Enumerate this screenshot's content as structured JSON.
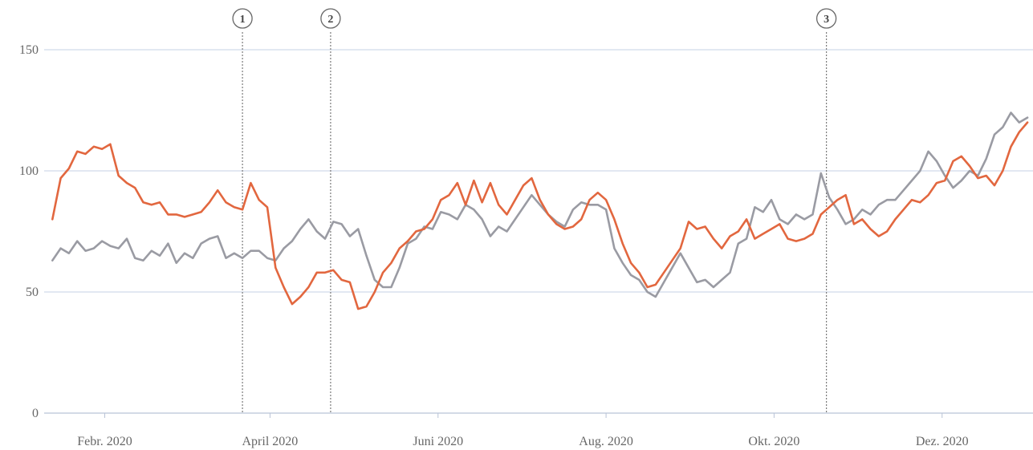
{
  "chart_data": {
    "type": "line",
    "title": "",
    "xlabel": "",
    "ylabel": "",
    "ylim": [
      0,
      150
    ],
    "y_ticks": [
      "0",
      "50",
      "100",
      "150"
    ],
    "x_ticks": [
      "Febr. 2020",
      "April 2020",
      "Juni 2020",
      "Aug. 2020",
      "Okt. 2020",
      "Dez. 2020"
    ],
    "grid": "horizontal",
    "markers": [
      {
        "label": "1",
        "x": "2020-03-22"
      },
      {
        "label": "2",
        "x": "2020-04-23"
      },
      {
        "label": "3",
        "x": "2020-10-20"
      }
    ],
    "series": [
      {
        "color": "#e2673f",
        "points": [
          [
            "2020-01-13",
            80
          ],
          [
            "2020-01-16",
            97
          ],
          [
            "2020-01-19",
            101
          ],
          [
            "2020-01-22",
            108
          ],
          [
            "2020-01-25",
            107
          ],
          [
            "2020-01-28",
            110
          ],
          [
            "2020-01-31",
            109
          ],
          [
            "2020-02-03",
            111
          ],
          [
            "2020-02-06",
            98
          ],
          [
            "2020-02-09",
            95
          ],
          [
            "2020-02-12",
            93
          ],
          [
            "2020-02-15",
            87
          ],
          [
            "2020-02-18",
            86
          ],
          [
            "2020-02-21",
            87
          ],
          [
            "2020-02-24",
            82
          ],
          [
            "2020-02-27",
            82
          ],
          [
            "2020-03-01",
            81
          ],
          [
            "2020-03-04",
            82
          ],
          [
            "2020-03-07",
            83
          ],
          [
            "2020-03-10",
            87
          ],
          [
            "2020-03-13",
            92
          ],
          [
            "2020-03-16",
            87
          ],
          [
            "2020-03-19",
            85
          ],
          [
            "2020-03-22",
            84
          ],
          [
            "2020-03-25",
            95
          ],
          [
            "2020-03-28",
            88
          ],
          [
            "2020-03-31",
            85
          ],
          [
            "2020-04-03",
            60
          ],
          [
            "2020-04-06",
            52
          ],
          [
            "2020-04-09",
            45
          ],
          [
            "2020-04-12",
            48
          ],
          [
            "2020-04-15",
            52
          ],
          [
            "2020-04-18",
            58
          ],
          [
            "2020-04-21",
            58
          ],
          [
            "2020-04-24",
            59
          ],
          [
            "2020-04-27",
            55
          ],
          [
            "2020-04-30",
            54
          ],
          [
            "2020-05-03",
            43
          ],
          [
            "2020-05-06",
            44
          ],
          [
            "2020-05-09",
            50
          ],
          [
            "2020-05-12",
            58
          ],
          [
            "2020-05-15",
            62
          ],
          [
            "2020-05-18",
            68
          ],
          [
            "2020-05-21",
            71
          ],
          [
            "2020-05-24",
            75
          ],
          [
            "2020-05-27",
            76
          ],
          [
            "2020-05-30",
            80
          ],
          [
            "2020-06-02",
            88
          ],
          [
            "2020-06-05",
            90
          ],
          [
            "2020-06-08",
            95
          ],
          [
            "2020-06-11",
            86
          ],
          [
            "2020-06-14",
            96
          ],
          [
            "2020-06-17",
            87
          ],
          [
            "2020-06-20",
            95
          ],
          [
            "2020-06-23",
            86
          ],
          [
            "2020-06-26",
            82
          ],
          [
            "2020-06-29",
            88
          ],
          [
            "2020-07-02",
            94
          ],
          [
            "2020-07-05",
            97
          ],
          [
            "2020-07-08",
            88
          ],
          [
            "2020-07-11",
            82
          ],
          [
            "2020-07-14",
            78
          ],
          [
            "2020-07-17",
            76
          ],
          [
            "2020-07-20",
            77
          ],
          [
            "2020-07-23",
            80
          ],
          [
            "2020-07-26",
            88
          ],
          [
            "2020-07-29",
            91
          ],
          [
            "2020-08-01",
            88
          ],
          [
            "2020-08-04",
            80
          ],
          [
            "2020-08-07",
            70
          ],
          [
            "2020-08-10",
            62
          ],
          [
            "2020-08-13",
            58
          ],
          [
            "2020-08-16",
            52
          ],
          [
            "2020-08-19",
            53
          ],
          [
            "2020-08-22",
            58
          ],
          [
            "2020-08-25",
            63
          ],
          [
            "2020-08-28",
            68
          ],
          [
            "2020-08-31",
            79
          ],
          [
            "2020-09-03",
            76
          ],
          [
            "2020-09-06",
            77
          ],
          [
            "2020-09-09",
            72
          ],
          [
            "2020-09-12",
            68
          ],
          [
            "2020-09-15",
            73
          ],
          [
            "2020-09-18",
            75
          ],
          [
            "2020-09-21",
            80
          ],
          [
            "2020-09-24",
            72
          ],
          [
            "2020-09-27",
            74
          ],
          [
            "2020-09-30",
            76
          ],
          [
            "2020-10-03",
            78
          ],
          [
            "2020-10-06",
            72
          ],
          [
            "2020-10-09",
            71
          ],
          [
            "2020-10-12",
            72
          ],
          [
            "2020-10-15",
            74
          ],
          [
            "2020-10-18",
            82
          ],
          [
            "2020-10-21",
            85
          ],
          [
            "2020-10-24",
            88
          ],
          [
            "2020-10-27",
            90
          ],
          [
            "2020-10-30",
            78
          ],
          [
            "2020-11-02",
            80
          ],
          [
            "2020-11-05",
            76
          ],
          [
            "2020-11-08",
            73
          ],
          [
            "2020-11-11",
            75
          ],
          [
            "2020-11-14",
            80
          ],
          [
            "2020-11-17",
            84
          ],
          [
            "2020-11-20",
            88
          ],
          [
            "2020-11-23",
            87
          ],
          [
            "2020-11-26",
            90
          ],
          [
            "2020-11-29",
            95
          ],
          [
            "2020-12-02",
            96
          ],
          [
            "2020-12-05",
            104
          ],
          [
            "2020-12-08",
            106
          ],
          [
            "2020-12-11",
            102
          ],
          [
            "2020-12-14",
            97
          ],
          [
            "2020-12-17",
            98
          ],
          [
            "2020-12-20",
            94
          ],
          [
            "2020-12-23",
            100
          ],
          [
            "2020-12-26",
            110
          ],
          [
            "2020-12-29",
            116
          ],
          [
            "2021-01-01",
            120
          ]
        ]
      },
      {
        "color": "#9a9ba3",
        "points": [
          [
            "2020-01-13",
            63
          ],
          [
            "2020-01-16",
            68
          ],
          [
            "2020-01-19",
            66
          ],
          [
            "2020-01-22",
            71
          ],
          [
            "2020-01-25",
            67
          ],
          [
            "2020-01-28",
            68
          ],
          [
            "2020-01-31",
            71
          ],
          [
            "2020-02-03",
            69
          ],
          [
            "2020-02-06",
            68
          ],
          [
            "2020-02-09",
            72
          ],
          [
            "2020-02-12",
            64
          ],
          [
            "2020-02-15",
            63
          ],
          [
            "2020-02-18",
            67
          ],
          [
            "2020-02-21",
            65
          ],
          [
            "2020-02-24",
            70
          ],
          [
            "2020-02-27",
            62
          ],
          [
            "2020-03-01",
            66
          ],
          [
            "2020-03-04",
            64
          ],
          [
            "2020-03-07",
            70
          ],
          [
            "2020-03-10",
            72
          ],
          [
            "2020-03-13",
            73
          ],
          [
            "2020-03-16",
            64
          ],
          [
            "2020-03-19",
            66
          ],
          [
            "2020-03-22",
            64
          ],
          [
            "2020-03-25",
            67
          ],
          [
            "2020-03-28",
            67
          ],
          [
            "2020-03-31",
            64
          ],
          [
            "2020-04-03",
            63
          ],
          [
            "2020-04-06",
            68
          ],
          [
            "2020-04-09",
            71
          ],
          [
            "2020-04-12",
            76
          ],
          [
            "2020-04-15",
            80
          ],
          [
            "2020-04-18",
            75
          ],
          [
            "2020-04-21",
            72
          ],
          [
            "2020-04-24",
            79
          ],
          [
            "2020-04-27",
            78
          ],
          [
            "2020-04-30",
            73
          ],
          [
            "2020-05-03",
            76
          ],
          [
            "2020-05-06",
            65
          ],
          [
            "2020-05-09",
            55
          ],
          [
            "2020-05-12",
            52
          ],
          [
            "2020-05-15",
            52
          ],
          [
            "2020-05-18",
            60
          ],
          [
            "2020-05-21",
            70
          ],
          [
            "2020-05-24",
            72
          ],
          [
            "2020-05-27",
            77
          ],
          [
            "2020-05-30",
            76
          ],
          [
            "2020-06-02",
            83
          ],
          [
            "2020-06-05",
            82
          ],
          [
            "2020-06-08",
            80
          ],
          [
            "2020-06-11",
            86
          ],
          [
            "2020-06-14",
            84
          ],
          [
            "2020-06-17",
            80
          ],
          [
            "2020-06-20",
            73
          ],
          [
            "2020-06-23",
            77
          ],
          [
            "2020-06-26",
            75
          ],
          [
            "2020-06-29",
            80
          ],
          [
            "2020-07-02",
            85
          ],
          [
            "2020-07-05",
            90
          ],
          [
            "2020-07-08",
            86
          ],
          [
            "2020-07-11",
            82
          ],
          [
            "2020-07-14",
            79
          ],
          [
            "2020-07-17",
            77
          ],
          [
            "2020-07-20",
            84
          ],
          [
            "2020-07-23",
            87
          ],
          [
            "2020-07-26",
            86
          ],
          [
            "2020-07-29",
            86
          ],
          [
            "2020-08-01",
            84
          ],
          [
            "2020-08-04",
            68
          ],
          [
            "2020-08-07",
            62
          ],
          [
            "2020-08-10",
            57
          ],
          [
            "2020-08-13",
            55
          ],
          [
            "2020-08-16",
            50
          ],
          [
            "2020-08-19",
            48
          ],
          [
            "2020-08-22",
            54
          ],
          [
            "2020-08-25",
            60
          ],
          [
            "2020-08-28",
            66
          ],
          [
            "2020-08-31",
            60
          ],
          [
            "2020-09-03",
            54
          ],
          [
            "2020-09-06",
            55
          ],
          [
            "2020-09-09",
            52
          ],
          [
            "2020-09-12",
            55
          ],
          [
            "2020-09-15",
            58
          ],
          [
            "2020-09-18",
            70
          ],
          [
            "2020-09-21",
            72
          ],
          [
            "2020-09-24",
            85
          ],
          [
            "2020-09-27",
            83
          ],
          [
            "2020-09-30",
            88
          ],
          [
            "2020-10-03",
            80
          ],
          [
            "2020-10-06",
            78
          ],
          [
            "2020-10-09",
            82
          ],
          [
            "2020-10-12",
            80
          ],
          [
            "2020-10-15",
            82
          ],
          [
            "2020-10-18",
            99
          ],
          [
            "2020-10-21",
            89
          ],
          [
            "2020-10-24",
            84
          ],
          [
            "2020-10-27",
            78
          ],
          [
            "2020-10-30",
            80
          ],
          [
            "2020-11-02",
            84
          ],
          [
            "2020-11-05",
            82
          ],
          [
            "2020-11-08",
            86
          ],
          [
            "2020-11-11",
            88
          ],
          [
            "2020-11-14",
            88
          ],
          [
            "2020-11-17",
            92
          ],
          [
            "2020-11-20",
            96
          ],
          [
            "2020-11-23",
            100
          ],
          [
            "2020-11-26",
            108
          ],
          [
            "2020-11-29",
            104
          ],
          [
            "2020-12-02",
            98
          ],
          [
            "2020-12-05",
            93
          ],
          [
            "2020-12-08",
            96
          ],
          [
            "2020-12-11",
            100
          ],
          [
            "2020-12-14",
            98
          ],
          [
            "2020-12-17",
            105
          ],
          [
            "2020-12-20",
            115
          ],
          [
            "2020-12-23",
            118
          ],
          [
            "2020-12-26",
            124
          ],
          [
            "2020-12-29",
            120
          ],
          [
            "2021-01-01",
            122
          ]
        ]
      }
    ]
  }
}
